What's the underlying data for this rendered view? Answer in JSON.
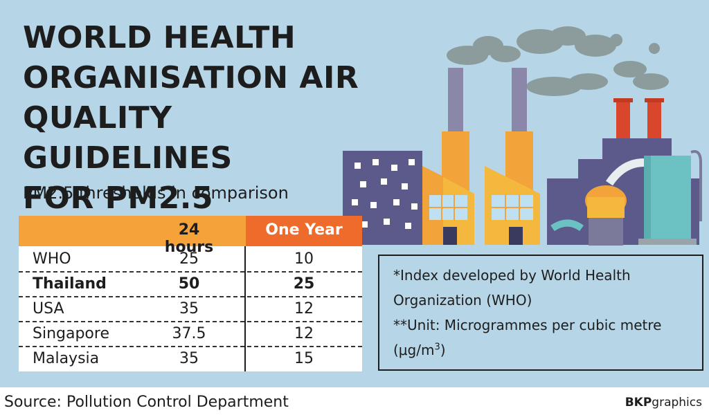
{
  "title_lines": [
    "WORLD HEALTH",
    "ORGANISATION AIR",
    "QUALITY GUIDELINES",
    "FOR PM2.5"
  ],
  "subtitle": "PM2.5 thresholds in comparison",
  "table": {
    "headers": {
      "col_24": "24 hours",
      "col_1y": "One Year"
    },
    "rows": [
      {
        "name": "WHO",
        "h24": "25",
        "y1": "10",
        "bold": false
      },
      {
        "name": "Thailand",
        "h24": "50",
        "y1": "25",
        "bold": true
      },
      {
        "name": "USA",
        "h24": "35",
        "y1": "12",
        "bold": false
      },
      {
        "name": "Singapore",
        "h24": "37.5",
        "y1": "12",
        "bold": false
      },
      {
        "name": "Malaysia",
        "h24": "35",
        "y1": "15",
        "bold": false
      }
    ]
  },
  "notes": {
    "line1": "*Index developed by World Health",
    "line2": "Organization (WHO)",
    "line3": "**Unit: Microgrammes per cubic metre",
    "line4_prefix": "(μg/m",
    "line4_sup": "3",
    "line4_suffix": ")"
  },
  "source": "Source: Pollution Control Department",
  "brand": {
    "bold": "BKP",
    "normal": "graphics"
  },
  "colors": {
    "background": "#b6d6e8",
    "header_24": "#f5a23a",
    "header_1y": "#ee6b2c",
    "factory_orange": "#f2a33a",
    "building_purple": "#5b5a8a",
    "smoke": "#8c9c9c"
  },
  "illustration": {
    "icon": "factory-illustration"
  }
}
